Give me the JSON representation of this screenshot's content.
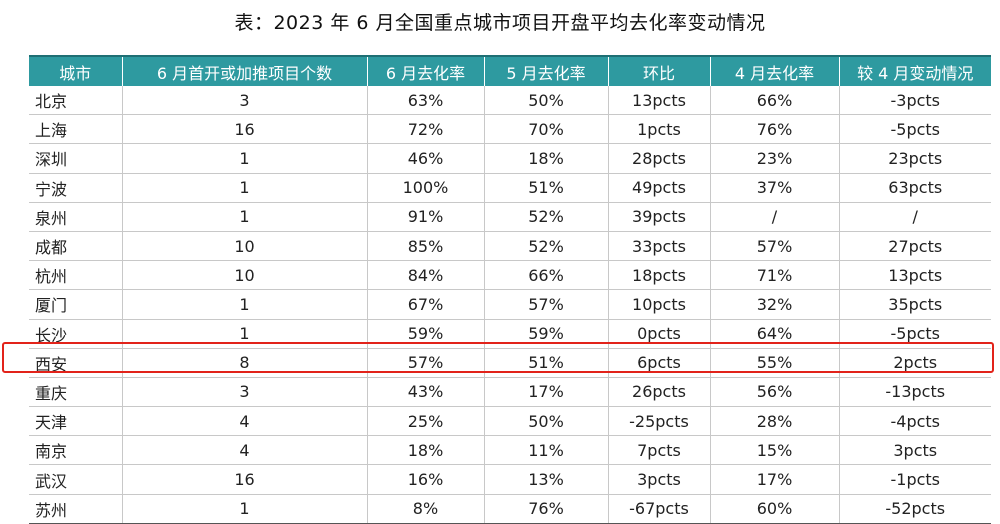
{
  "title": "表：2023 年 6 月全国重点城市项目开盘平均去化率变动情况",
  "headers": [
    "城市",
    "6 月首开或加推项目个数",
    "6 月去化率",
    "5 月去化率",
    "环比",
    "4 月去化率",
    "较 4 月变动情况"
  ],
  "rows": [
    [
      "北京",
      "3",
      "63%",
      "50%",
      "13pcts",
      "66%",
      "-3pcts"
    ],
    [
      "上海",
      "16",
      "72%",
      "70%",
      "1pcts",
      "76%",
      "-5pcts"
    ],
    [
      "深圳",
      "1",
      "46%",
      "18%",
      "28pcts",
      "23%",
      "23pcts"
    ],
    [
      "宁波",
      "1",
      "100%",
      "51%",
      "49pcts",
      "37%",
      "63pcts"
    ],
    [
      "泉州",
      "1",
      "91%",
      "52%",
      "39pcts",
      "/",
      "/"
    ],
    [
      "成都",
      "10",
      "85%",
      "52%",
      "33pcts",
      "57%",
      "27pcts"
    ],
    [
      "杭州",
      "10",
      "84%",
      "66%",
      "18pcts",
      "71%",
      "13pcts"
    ],
    [
      "厦门",
      "1",
      "67%",
      "57%",
      "10pcts",
      "32%",
      "35pcts"
    ],
    [
      "长沙",
      "1",
      "59%",
      "59%",
      "0pcts",
      "64%",
      "-5pcts"
    ],
    [
      "西安",
      "8",
      "57%",
      "51%",
      "6pcts",
      "55%",
      "2pcts"
    ],
    [
      "重庆",
      "3",
      "43%",
      "17%",
      "26pcts",
      "56%",
      "-13pcts"
    ],
    [
      "天津",
      "4",
      "25%",
      "50%",
      "-25pcts",
      "28%",
      "-4pcts"
    ],
    [
      "南京",
      "4",
      "18%",
      "11%",
      "7pcts",
      "15%",
      "3pcts"
    ],
    [
      "武汉",
      "16",
      "16%",
      "13%",
      "3pcts",
      "17%",
      "-1pcts"
    ],
    [
      "苏州",
      "1",
      "8%",
      "76%",
      "-67pcts",
      "60%",
      "-52pcts"
    ]
  ],
  "highlighted_row": "西安",
  "colors": {
    "header_bg": "#2e9aa0",
    "header_text": "#ffffff",
    "highlight_border": "#e2231a"
  }
}
